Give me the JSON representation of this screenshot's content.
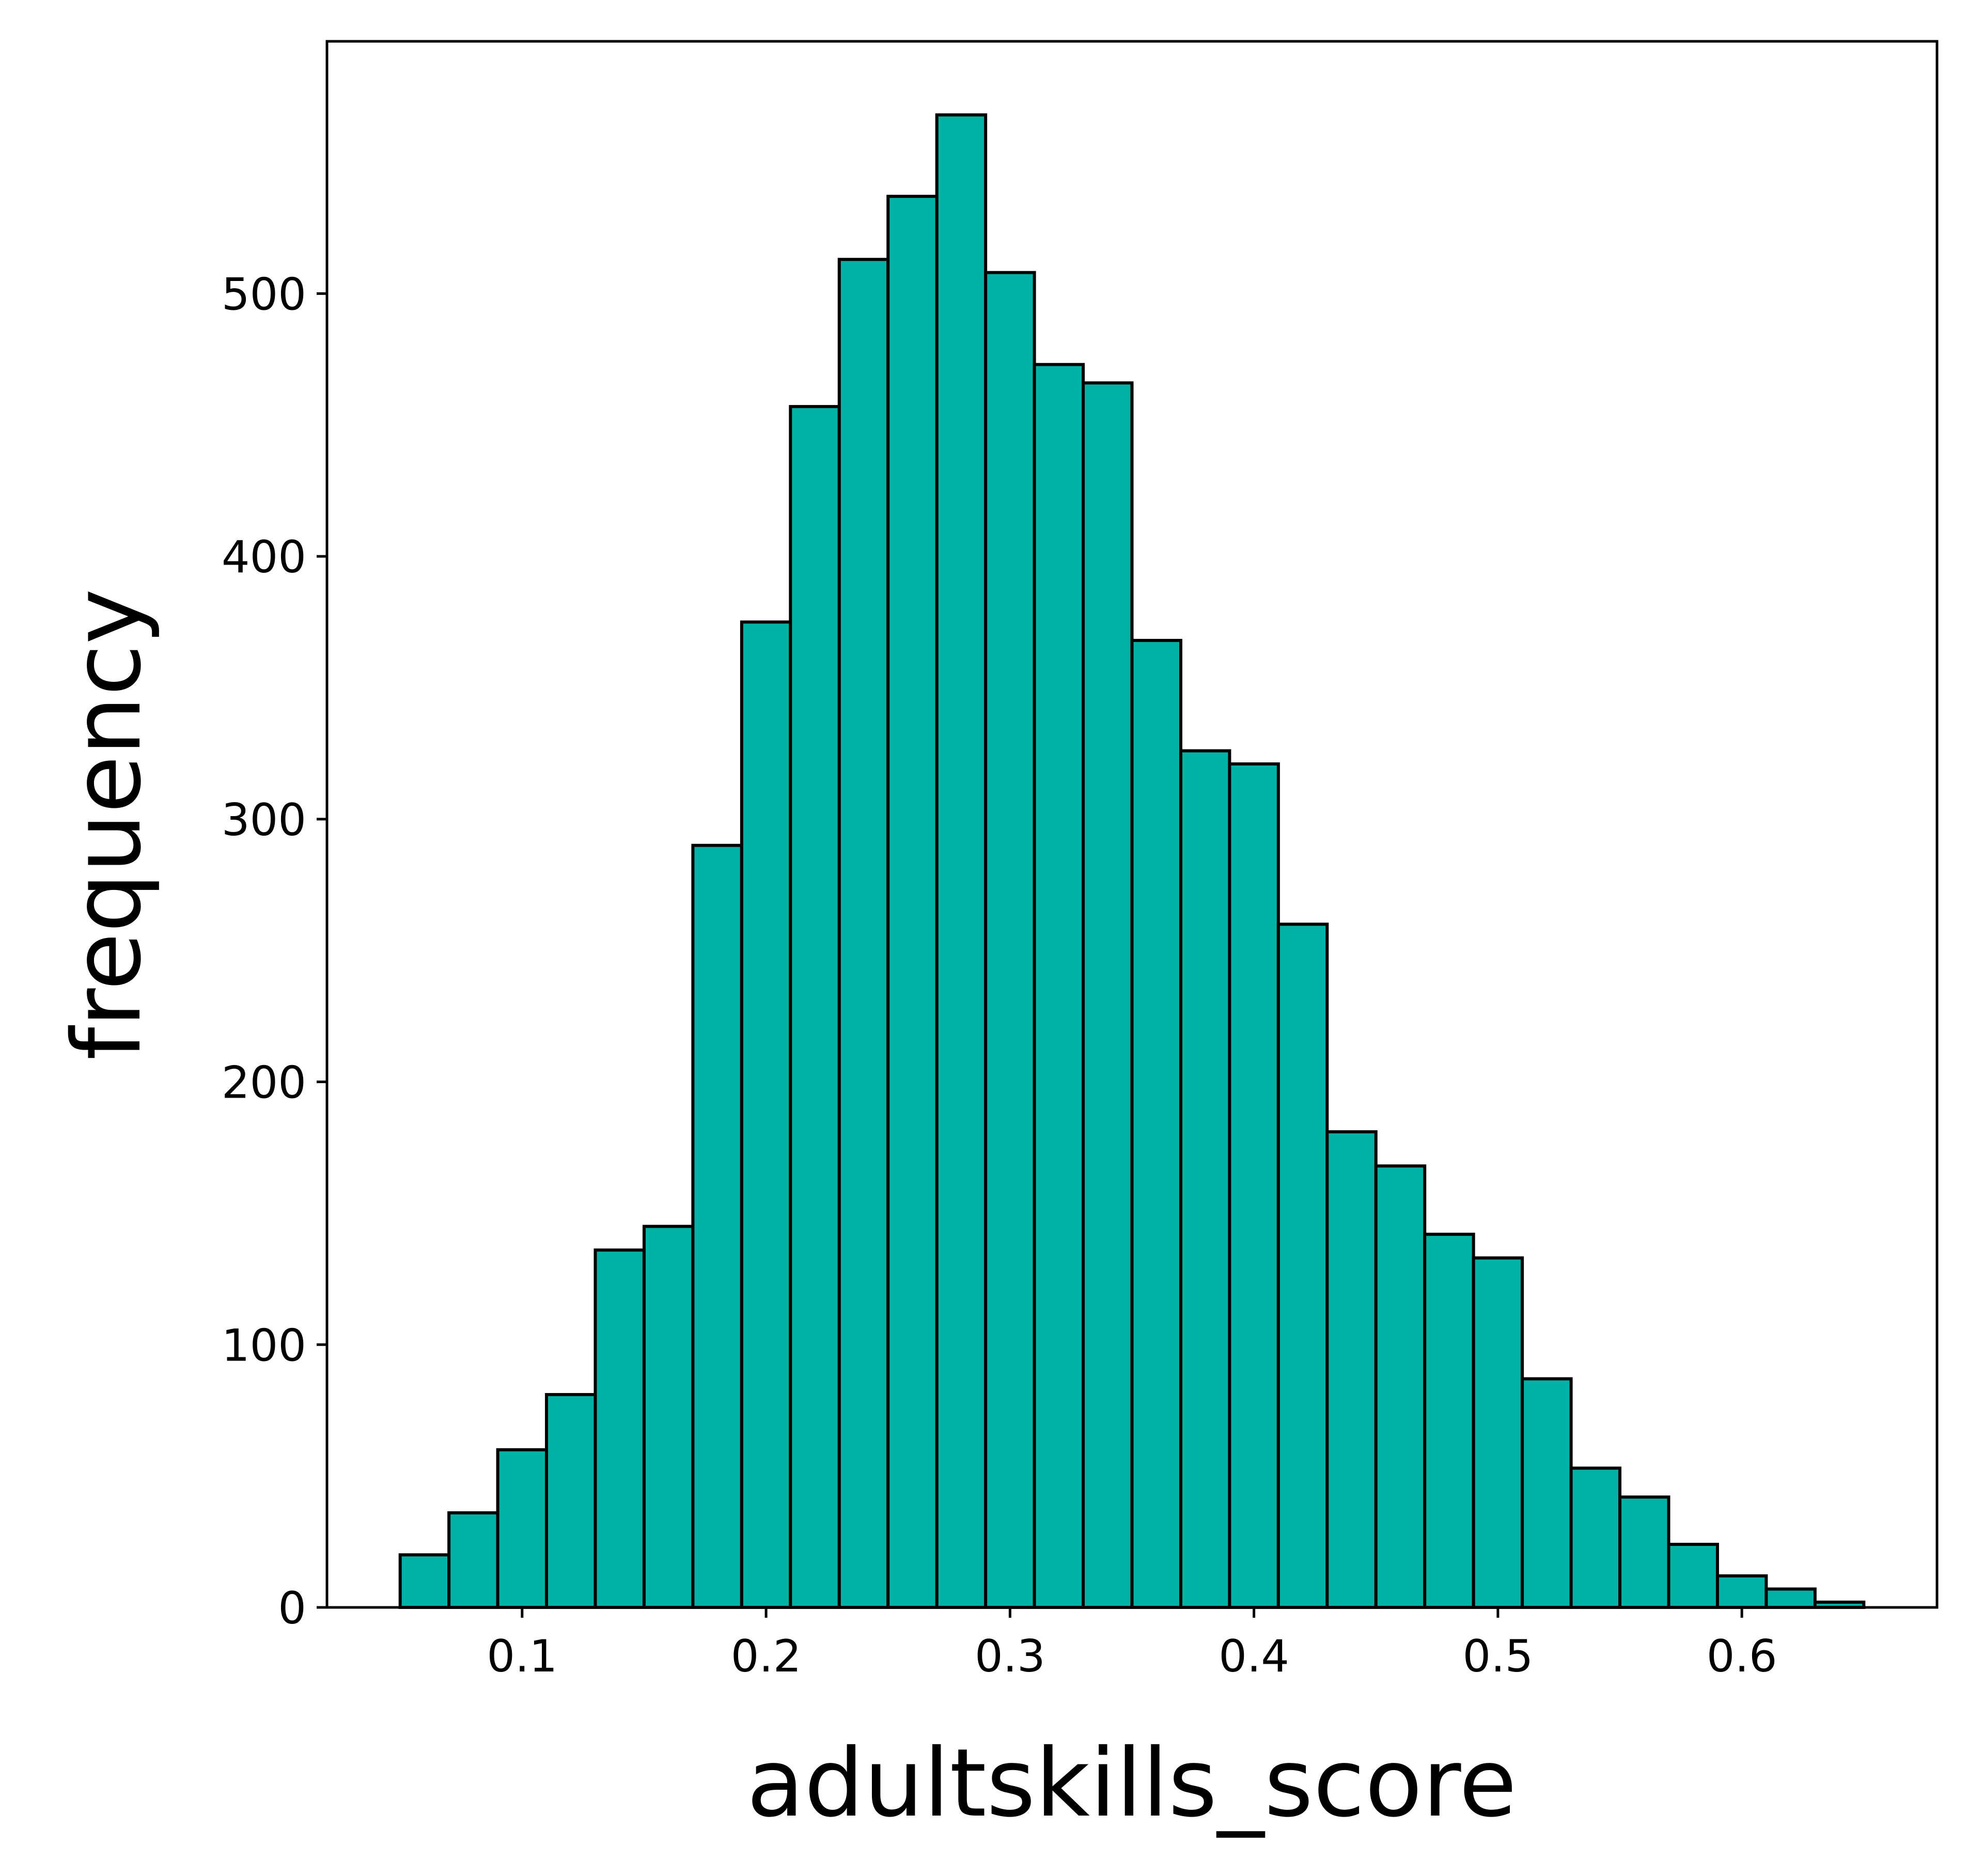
{
  "chart_data": {
    "type": "bar",
    "subtype": "histogram",
    "title": "",
    "xlabel": "adultskills_score",
    "ylabel": "frequency",
    "bin_edges": [
      0.05,
      0.07,
      0.09,
      0.11,
      0.13,
      0.15,
      0.17,
      0.19,
      0.21,
      0.23,
      0.25,
      0.27,
      0.29,
      0.31,
      0.33,
      0.35,
      0.37,
      0.39,
      0.41,
      0.43,
      0.45,
      0.47,
      0.49,
      0.51,
      0.53,
      0.55,
      0.57,
      0.59,
      0.61,
      0.63,
      0.65
    ],
    "values": [
      20,
      36,
      60,
      81,
      136,
      145,
      290,
      375,
      457,
      513,
      537,
      568,
      508,
      473,
      466,
      368,
      326,
      321,
      260,
      181,
      168,
      142,
      133,
      87,
      53,
      42,
      24,
      12,
      7,
      2
    ],
    "xlim": [
      0.02,
      0.68
    ],
    "ylim": [
      0,
      596
    ],
    "xticks": [
      0.1,
      0.2,
      0.3,
      0.4,
      0.5,
      0.6
    ],
    "xtick_labels": [
      "0.1",
      "0.2",
      "0.3",
      "0.4",
      "0.5",
      "0.6"
    ],
    "yticks": [
      0,
      100,
      200,
      300,
      400,
      500
    ],
    "ytick_labels": [
      "0",
      "100",
      "200",
      "300",
      "400",
      "500"
    ],
    "grid": false,
    "legend": "none",
    "colors": {
      "bar_fill": "#00b2a5",
      "bar_edge": "#000000",
      "axes": "#000000",
      "background": "#ffffff"
    }
  }
}
